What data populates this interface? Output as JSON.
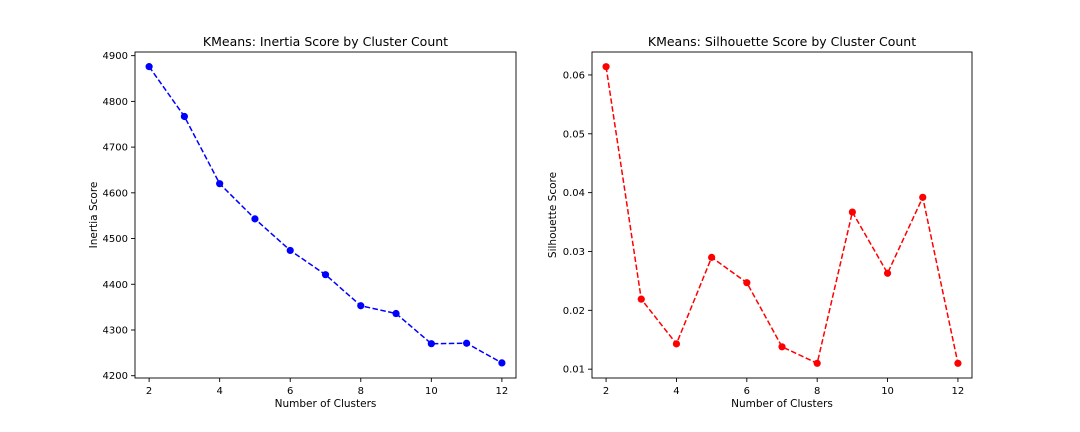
{
  "chart_data": [
    {
      "type": "line",
      "title": "KMeans: Inertia Score by Cluster Count",
      "xlabel": "Number of Clusters",
      "ylabel": "Inertia Score",
      "x": [
        2,
        3,
        4,
        5,
        6,
        7,
        8,
        9,
        10,
        11,
        12
      ],
      "values": [
        4876,
        4767,
        4620,
        4543,
        4474,
        4421,
        4353,
        4336,
        4270,
        4271,
        4228
      ],
      "xlim": [
        1.6,
        12.4
      ],
      "ylim": [
        4195,
        4908
      ],
      "xticks": [
        2,
        4,
        6,
        8,
        10,
        12
      ],
      "yticks": [
        4200,
        4300,
        4400,
        4500,
        4600,
        4700,
        4800,
        4900
      ],
      "ytick_decimals": 0,
      "color": "#0000ff",
      "line_style": "dashed",
      "marker": "circle",
      "grid": false
    },
    {
      "type": "line",
      "title": "KMeans: Silhouette Score by Cluster Count",
      "xlabel": "Number of Clusters",
      "ylabel": "Silhouette Score",
      "x": [
        2,
        3,
        4,
        5,
        6,
        7,
        8,
        9,
        10,
        11,
        12
      ],
      "values": [
        0.0614,
        0.0219,
        0.0143,
        0.029,
        0.0247,
        0.0138,
        0.011,
        0.0367,
        0.0263,
        0.0392,
        0.011
      ],
      "xlim": [
        1.6,
        12.4
      ],
      "ylim": [
        0.0085,
        0.0639
      ],
      "xticks": [
        2,
        4,
        6,
        8,
        10,
        12
      ],
      "yticks": [
        0.01,
        0.02,
        0.03,
        0.04,
        0.05,
        0.06
      ],
      "ytick_decimals": 2,
      "color": "#ff0000",
      "line_style": "dashed",
      "marker": "circle",
      "grid": false
    }
  ]
}
